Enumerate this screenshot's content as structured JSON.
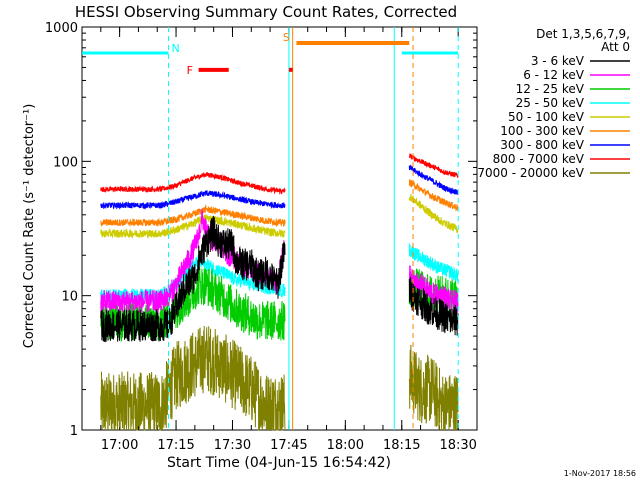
{
  "chart_data": {
    "type": "line",
    "title": "HESSI Observing Summary Count Rates, Corrected",
    "xlabel": "Start Time (04-Jun-15 16:54:42)",
    "ylabel": "Corrected Count Rate (s⁻¹ detector⁻¹)",
    "yscale": "log",
    "ylim": [
      1,
      1000
    ],
    "xlim_minutes": [
      -5,
      100
    ],
    "x_ticks": [
      {
        "m": 5,
        "label": "17:00"
      },
      {
        "m": 20,
        "label": "17:15"
      },
      {
        "m": 35,
        "label": "17:30"
      },
      {
        "m": 50,
        "label": "17:45"
      },
      {
        "m": 65,
        "label": "18:00"
      },
      {
        "m": 80,
        "label": "18:15"
      },
      {
        "m": 95,
        "label": "18:30"
      }
    ],
    "y_ticks": [
      {
        "v": 1,
        "label": "1"
      },
      {
        "v": 10,
        "label": "10"
      },
      {
        "v": 100,
        "label": "100"
      },
      {
        "v": 1000,
        "label": "1000"
      }
    ],
    "legend": {
      "header": [
        "Det 1,3,5,6,7,9,",
        "Att 0"
      ],
      "placement": "right"
    },
    "series": [
      {
        "name": "3 - 6 keV",
        "color": "#000000",
        "seg1": {
          "t": [
            0,
            16,
            18,
            20,
            22,
            23,
            25,
            26,
            28,
            30,
            31,
            33,
            35,
            36,
            38,
            40,
            42,
            44,
            46,
            47,
            48,
            49
          ],
          "v": [
            6,
            6,
            6,
            8,
            11,
            12,
            14,
            18,
            25,
            30,
            26,
            24,
            24,
            18,
            17,
            17,
            14,
            15,
            13,
            12,
            17,
            22
          ]
        },
        "seg2": {
          "t": [
            82,
            83,
            85,
            87,
            89,
            91,
            93,
            95
          ],
          "v": [
            11,
            10,
            9,
            8,
            7.5,
            7,
            6.5,
            6.5
          ]
        },
        "noise": 0.28
      },
      {
        "name": "6 - 12 keV",
        "color": "#ff00ff",
        "seg1": {
          "t": [
            0,
            16,
            18,
            20,
            22,
            24,
            26,
            27,
            28,
            30,
            32,
            34,
            36,
            38,
            40,
            42,
            44,
            46,
            47,
            48,
            49
          ],
          "v": [
            9,
            9,
            10,
            12,
            16,
            20,
            28,
            38,
            30,
            25,
            24,
            20,
            19,
            17,
            16,
            15,
            14,
            13,
            12,
            18,
            24
          ]
        },
        "seg2": {
          "t": [
            82,
            83,
            85,
            87,
            89,
            91,
            93,
            95
          ],
          "v": [
            14,
            13,
            12,
            11,
            10,
            10,
            9,
            9
          ]
        },
        "noise": 0.2
      },
      {
        "name": "12 - 25 keV",
        "color": "#00cc00",
        "seg1": {
          "t": [
            0,
            16,
            18,
            20,
            22,
            24,
            26,
            28,
            30,
            32,
            34,
            36,
            38,
            40,
            42,
            44,
            46,
            48,
            49
          ],
          "v": [
            6.5,
            6.5,
            7,
            8,
            9,
            10,
            12,
            12,
            11,
            10,
            9,
            8,
            7.5,
            7,
            6.5,
            6.5,
            6.5,
            6.5,
            6.5
          ]
        },
        "seg2": {
          "t": [
            82,
            85,
            88,
            91,
            95
          ],
          "v": [
            12,
            11,
            10,
            10,
            9.5
          ]
        },
        "noise": 0.35
      },
      {
        "name": "25 - 50 keV",
        "color": "#00ffff",
        "seg1": {
          "t": [
            0,
            16,
            18,
            20,
            22,
            24,
            26,
            28,
            30,
            32,
            34,
            36,
            38,
            40,
            42,
            44,
            46,
            48,
            49
          ],
          "v": [
            10,
            10,
            11,
            12,
            14,
            16,
            18,
            17,
            16,
            15,
            14,
            13,
            13,
            12,
            12,
            11.5,
            11.5,
            11,
            11
          ]
        },
        "seg2": {
          "t": [
            82,
            84,
            87,
            90,
            93,
            95
          ],
          "v": [
            22,
            20,
            18,
            16,
            15,
            14
          ]
        },
        "noise": 0.12
      },
      {
        "name": "50 - 100 keV",
        "color": "#cccc00",
        "seg1": {
          "t": [
            0,
            16,
            20,
            24,
            28,
            32,
            36,
            40,
            44,
            48,
            49
          ],
          "v": [
            29,
            29,
            31,
            34,
            38,
            36,
            34,
            32,
            30,
            29,
            29
          ]
        },
        "seg2": {
          "t": [
            82,
            85,
            88,
            91,
            95
          ],
          "v": [
            55,
            47,
            40,
            35,
            31
          ]
        },
        "noise": 0.07
      },
      {
        "name": "100 - 300 keV",
        "color": "#ff8000",
        "seg1": {
          "t": [
            0,
            16,
            20,
            24,
            28,
            32,
            36,
            40,
            44,
            48,
            49
          ],
          "v": [
            35,
            35,
            37,
            40,
            44,
            42,
            40,
            38,
            36,
            35,
            35
          ]
        },
        "seg2": {
          "t": [
            82,
            85,
            88,
            91,
            95
          ],
          "v": [
            70,
            62,
            55,
            50,
            45
          ]
        },
        "noise": 0.06
      },
      {
        "name": "300 - 800 keV",
        "color": "#0000ff",
        "seg1": {
          "t": [
            0,
            16,
            20,
            24,
            28,
            32,
            36,
            40,
            44,
            48,
            49
          ],
          "v": [
            47,
            47,
            50,
            54,
            58,
            56,
            53,
            50,
            48,
            47,
            47
          ]
        },
        "seg2": {
          "t": [
            82,
            85,
            88,
            91,
            95
          ],
          "v": [
            90,
            80,
            72,
            64,
            58
          ]
        },
        "noise": 0.05
      },
      {
        "name": "800 - 7000 keV",
        "color": "#ff0000",
        "seg1": {
          "t": [
            0,
            16,
            20,
            24,
            28,
            32,
            36,
            40,
            44,
            48,
            49
          ],
          "v": [
            62,
            62,
            66,
            74,
            80,
            76,
            70,
            66,
            62,
            60,
            60
          ]
        },
        "seg2": {
          "t": [
            82,
            85,
            88,
            91,
            95
          ],
          "v": [
            110,
            100,
            92,
            84,
            78
          ]
        },
        "noise": 0.045
      },
      {
        "name": "7000 - 20000 keV",
        "color": "#808000",
        "seg1": {
          "t": [
            0,
            16,
            20,
            24,
            28,
            32,
            36,
            40,
            44,
            48,
            49
          ],
          "v": [
            1.5,
            1.5,
            2.5,
            3,
            3.5,
            3,
            2.5,
            2,
            1.5,
            1.5,
            1.5
          ]
        },
        "seg2": {
          "t": [
            82,
            85,
            88,
            91,
            95
          ],
          "v": [
            2.5,
            2,
            2,
            1.5,
            1.5
          ]
        },
        "noise": 0.6
      }
    ],
    "flags": [
      {
        "label": "N",
        "color": "#00ffff",
        "style": "line",
        "ranges": [
          [
            -5,
            18
          ],
          [
            80,
            95
          ]
        ],
        "y": 640
      },
      {
        "label": "F",
        "color": "#ff0000",
        "style": "thick",
        "ranges": [
          [
            26,
            34
          ],
          [
            50,
            51
          ]
        ],
        "y": 480
      },
      {
        "label": "S",
        "color": "#ff8000",
        "style": "thick",
        "ranges": [
          [
            52,
            82
          ]
        ],
        "y": 760
      }
    ],
    "vlines": [
      {
        "m": 18,
        "color": "#00ffff",
        "dash": true
      },
      {
        "m": 50,
        "color": "#00ffff",
        "dash": false
      },
      {
        "m": 51,
        "color": "#ff8000",
        "dash": false
      },
      {
        "m": 78,
        "color": "#00ffff",
        "dash": false
      },
      {
        "m": 83,
        "color": "#ff8000",
        "dash": true
      },
      {
        "m": 95,
        "color": "#00ffff",
        "dash": true
      }
    ]
  },
  "footer": {
    "date_stamp": "1-Nov-2017 18:56"
  }
}
